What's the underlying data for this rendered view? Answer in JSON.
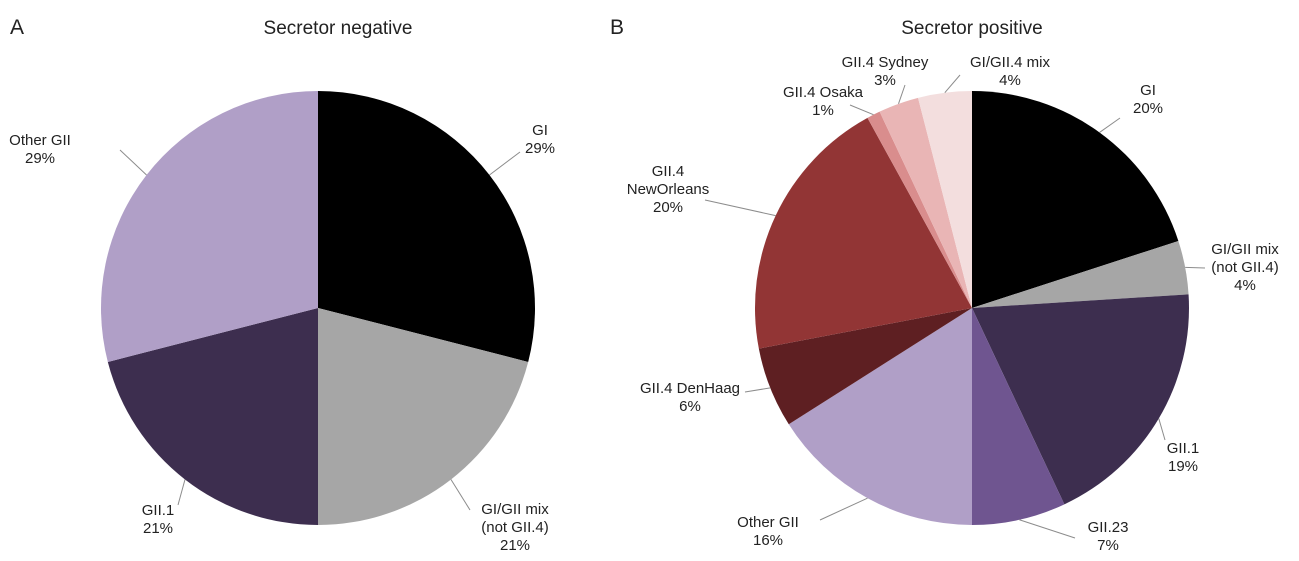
{
  "chart_data": [
    {
      "type": "pie",
      "panel": "A",
      "title": "Secretor negative",
      "categories": [
        "GI",
        "GI/GII mix (not GII.4)",
        "GII.1",
        "Other GII"
      ],
      "values": [
        29,
        21,
        21,
        29
      ],
      "value_labels": [
        "29%",
        "21%",
        "21%",
        "29%"
      ],
      "colors": [
        "#000000",
        "#a6a6a6",
        "#3d2e4f",
        "#b09fc7"
      ]
    },
    {
      "type": "pie",
      "panel": "B",
      "title": "Secretor positive",
      "categories": [
        "GI",
        "GI/GII mix (not GII.4)",
        "GII.1",
        "GII.23",
        "Other GII",
        "GII.4 DenHaag",
        "GII.4 NewOrleans",
        "GII.4 Osaka",
        "GII.4 Sydney",
        "GI/GII.4 mix"
      ],
      "values": [
        20,
        4,
        19,
        7,
        16,
        6,
        20,
        1,
        3,
        4
      ],
      "value_labels": [
        "20%",
        "4%",
        "19%",
        "7%",
        "16%",
        "6%",
        "20%",
        "1%",
        "3%",
        "4%"
      ],
      "colors": [
        "#000000",
        "#a6a6a6",
        "#3d2e4f",
        "#6f5590",
        "#b09fc7",
        "#5e1f22",
        "#923535",
        "#d98d8d",
        "#e9b5b5",
        "#f3dede"
      ]
    }
  ]
}
